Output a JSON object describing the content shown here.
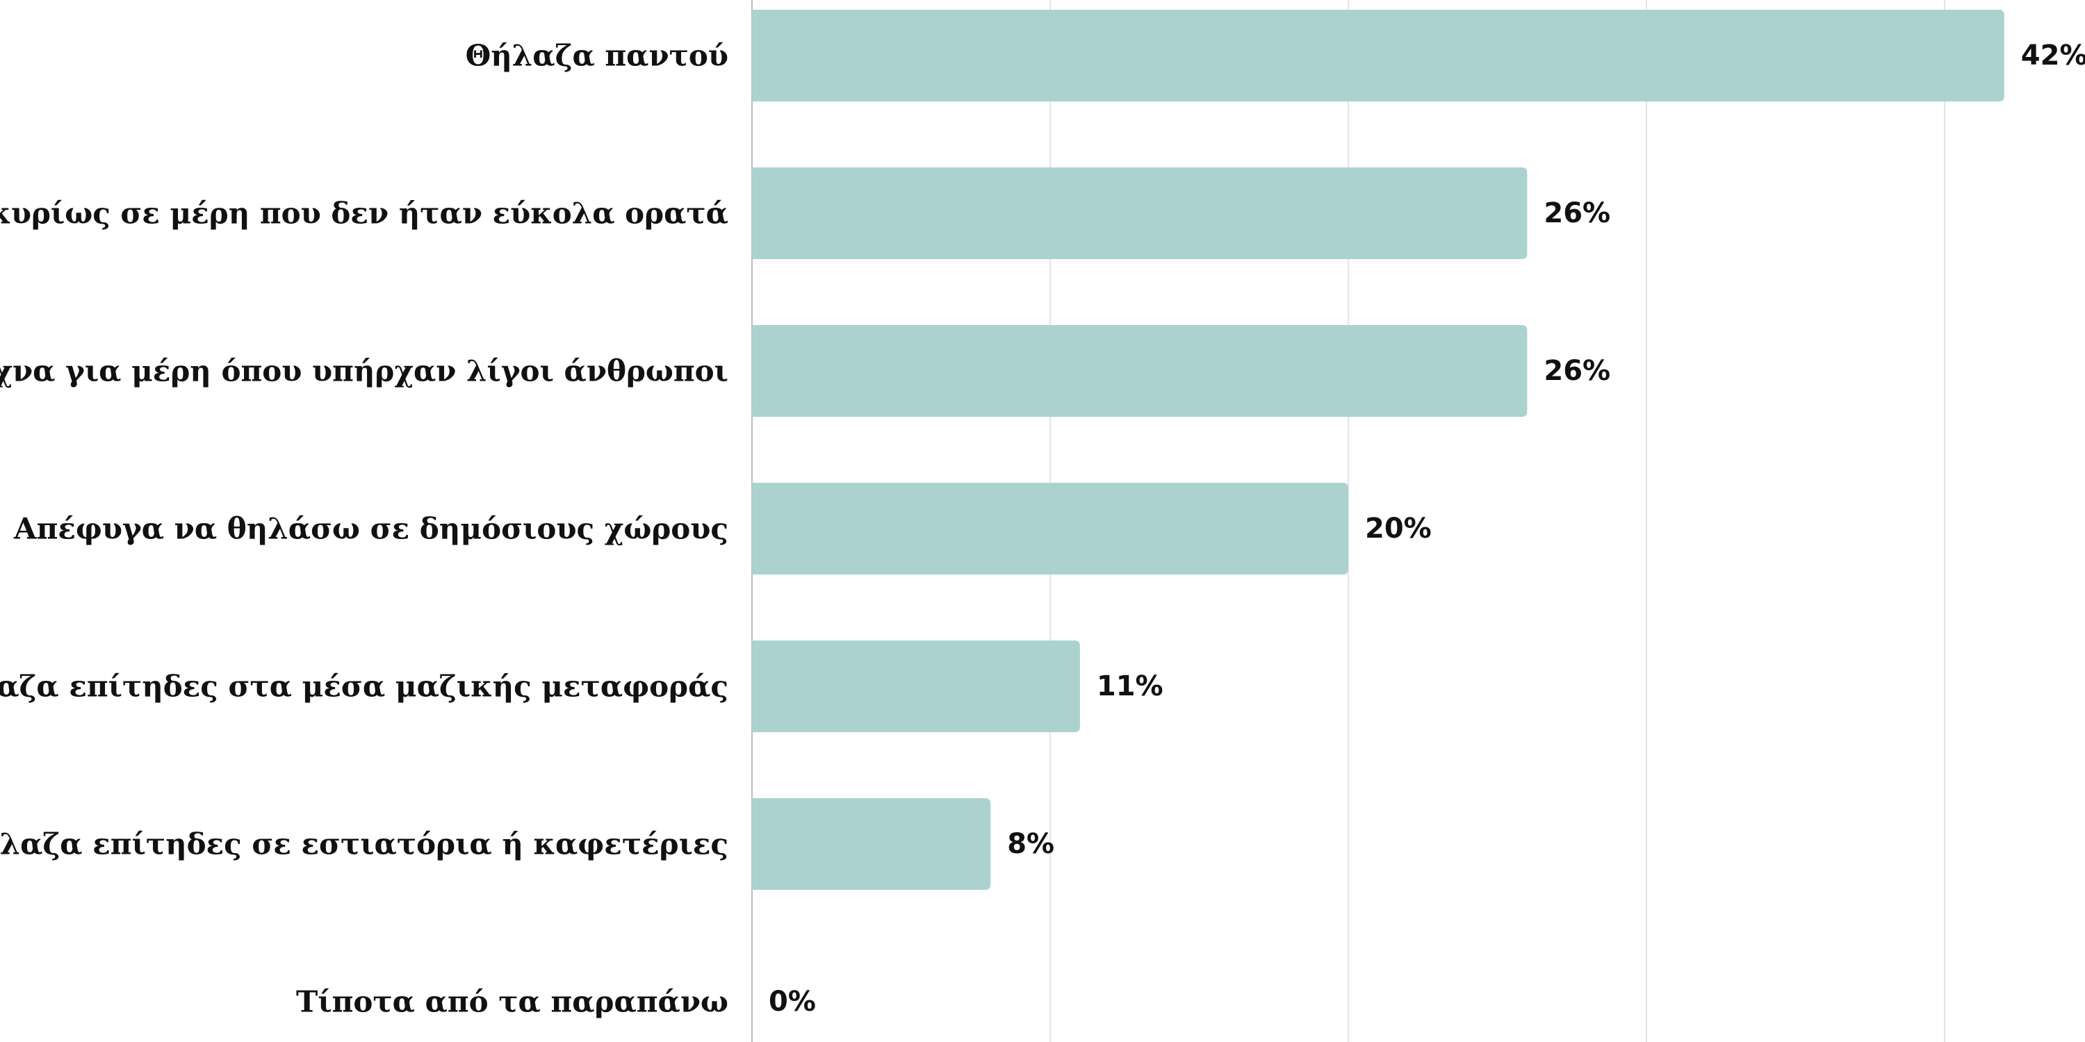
{
  "chart_data": {
    "type": "bar",
    "orientation": "horizontal",
    "title": "",
    "xlabel": "",
    "ylabel": "",
    "categories": [
      "Θήλαζα παντού",
      "Θήλαζα κυρίως σε μέρη που δεν ήταν εύκολα ορατά",
      "Έψαχνα για μέρη όπου υπήρχαν λίγοι άνθρωποι",
      "Απέφυγα να θηλάσω σε δημόσιους χώρους",
      "Δεν θήλαζα επίτηδες στα μέσα μαζικής μεταφοράς",
      "Δεν θήλαζα επίτηδες σε εστιατόρια ή καφετέριες",
      "Τίποτα από τα παραπάνω"
    ],
    "values": [
      42,
      26,
      26,
      20,
      11,
      8,
      0
    ],
    "value_labels": [
      "42%",
      "26%",
      "26%",
      "20%",
      "11%",
      "8%",
      "0%"
    ],
    "xlim": [
      0,
      45
    ],
    "gridlines_at": [
      0,
      10,
      20,
      30,
      40
    ],
    "grid": true,
    "legend": "none",
    "bar_color": "#abd2cf",
    "text_color": "#111111",
    "grid_color": "#e3e3e3"
  }
}
